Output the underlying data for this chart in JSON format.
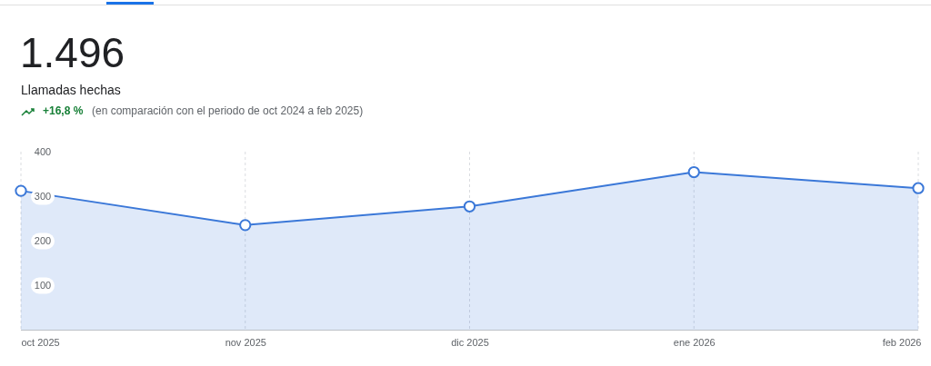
{
  "chart_data": {
    "type": "area",
    "title": "1.496",
    "subtitle": "Llamadas hechas",
    "annotations": [
      "+16,8 %",
      "(en comparación con el periodo de oct 2024 a feb 2025)"
    ],
    "categories": [
      "oct 2025",
      "nov 2025",
      "dic 2025",
      "ene 2026",
      "feb 2026"
    ],
    "series": [
      {
        "color": "#3b78d8",
        "values": [
          312,
          235,
          277,
          354,
          318
        ]
      }
    ],
    "ylim": [
      0,
      400
    ],
    "yticks": [
      100,
      200,
      300,
      400
    ],
    "grid": "x",
    "marker": "circle",
    "line_style": "solid"
  }
}
